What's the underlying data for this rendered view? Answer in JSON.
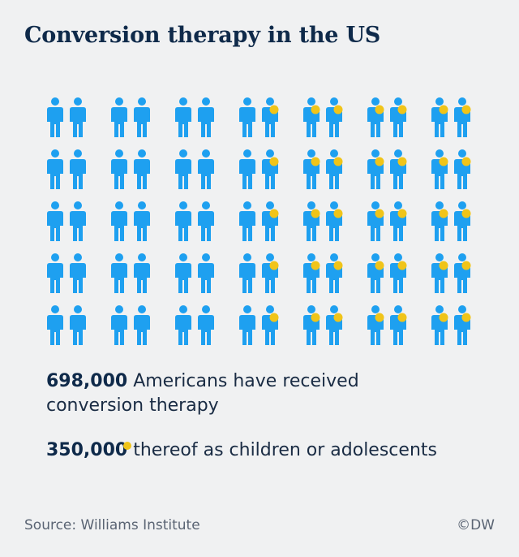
{
  "title": "Conversion therapy in the US",
  "chart_data": {
    "type": "pictogram",
    "total_icons": 70,
    "highlighted_icons": 35,
    "series": [
      {
        "name": "698,000 Americans have received conversion therapy",
        "value": 698000
      },
      {
        "name": "350,000 thereof as children or adolescents",
        "value": 350000
      }
    ]
  },
  "stat1": {
    "number": "698,000",
    "text": " Americans have received conversion therapy"
  },
  "stat2": {
    "number": "350,000",
    "text": " thereof as children or adolescents"
  },
  "source": "Source: Williams Institute",
  "credit": "©DW",
  "colors": {
    "person": "#1ea0f0",
    "dot": "#f0c419",
    "background": "#f0f1f2",
    "title": "#0f2a4a"
  }
}
